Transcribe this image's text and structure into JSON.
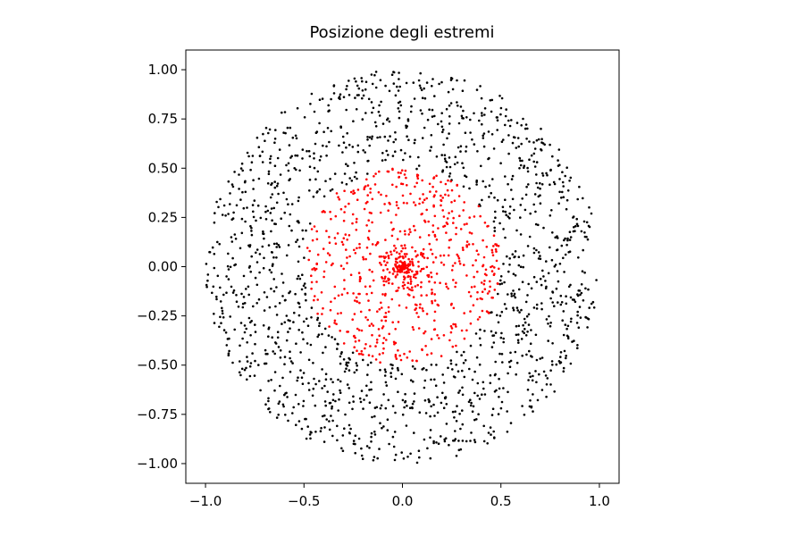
{
  "chart_data": {
    "type": "scatter",
    "title": "Posizione degli estremi",
    "xlabel": "",
    "ylabel": "",
    "xlim": [
      -1.1,
      1.1
    ],
    "ylim": [
      -1.1,
      1.1
    ],
    "aspect": "equal",
    "grid": false,
    "legend": "none",
    "xticks": [
      -1.0,
      -0.5,
      0.0,
      0.5,
      1.0
    ],
    "xtick_labels": [
      "−1.0",
      "−0.5",
      "0.0",
      "0.5",
      "1.0"
    ],
    "yticks": [
      1.0,
      0.75,
      0.5,
      0.25,
      0.0,
      -0.25,
      -0.5,
      -0.75,
      -1.0
    ],
    "ytick_labels": [
      "1.00",
      "0.75",
      "0.50",
      "0.25",
      "0.00",
      "−0.25",
      "−0.50",
      "−0.75",
      "−1.00"
    ],
    "series": [
      {
        "color": "#000000",
        "distribution": "uniform points in annulus 0.5 < r < 1.0",
        "r_range": [
          0.5,
          1.0
        ],
        "count": 1500,
        "marker_color": "#000000"
      },
      {
        "color": "#ff0000",
        "distribution": "points in disk r < 0.5, dense cluster at the origin",
        "r_range": [
          0.0,
          0.5
        ],
        "count": 800,
        "marker_color": "#ff0000"
      }
    ]
  }
}
